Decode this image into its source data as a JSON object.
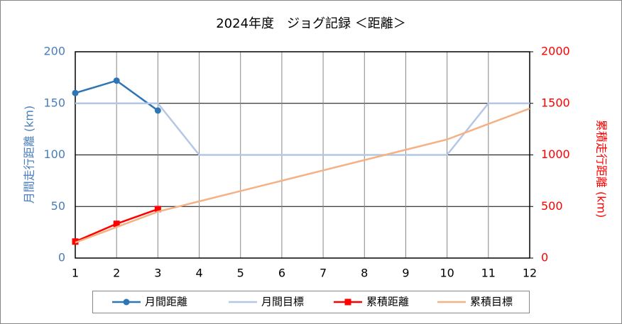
{
  "chart_data": {
    "type": "line",
    "title": "2024年度　ジョグ記録 ＜距離＞",
    "ylabel": "月間走行距離 (km)",
    "ylabel_color": "#4a7ebb",
    "y2label": "累積走行距離 (km)",
    "y2label_color": "#ff0000",
    "x": [
      1,
      2,
      3,
      4,
      5,
      6,
      7,
      8,
      9,
      10,
      11,
      12
    ],
    "xlim": [
      1,
      12
    ],
    "xticks": [
      1,
      2,
      3,
      4,
      5,
      6,
      7,
      8,
      9,
      10,
      11,
      12
    ],
    "ylim": [
      0,
      200
    ],
    "yticks": [
      0,
      50,
      100,
      150,
      200
    ],
    "y2lim": [
      0,
      2000
    ],
    "y2ticks": [
      0,
      500,
      1000,
      1500,
      2000
    ],
    "grid": true,
    "legend": "bottom",
    "series": [
      {
        "name": "月間距離",
        "color": "#2e75b6",
        "marker": "circle",
        "axis": "y",
        "values": [
          160,
          172,
          143,
          null,
          null,
          null,
          null,
          null,
          null,
          null,
          null,
          null
        ]
      },
      {
        "name": "月間目標",
        "color": "#b4c7e7",
        "marker": null,
        "axis": "y",
        "values": [
          150,
          150,
          150,
          100,
          100,
          100,
          100,
          100,
          100,
          100,
          150,
          150
        ]
      },
      {
        "name": "累積距離",
        "color": "#ff0000",
        "marker": "square",
        "axis": "y2",
        "values": [
          160,
          332,
          475,
          null,
          null,
          null,
          null,
          null,
          null,
          null,
          null,
          null
        ]
      },
      {
        "name": "累積目標",
        "color": "#f4b183",
        "marker": null,
        "axis": "y2",
        "values": [
          150,
          300,
          450,
          550,
          650,
          750,
          850,
          950,
          1050,
          1150,
          1300,
          1450
        ]
      }
    ]
  }
}
